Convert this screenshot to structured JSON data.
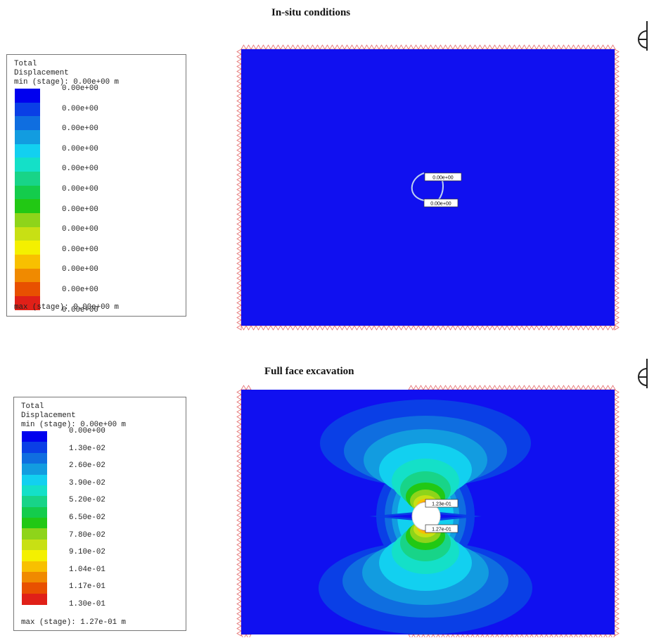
{
  "panels": [
    {
      "title": "In-situ conditions",
      "legend": {
        "header": [
          "Total",
          "Displacement",
          "min (stage): 0.00e+00 m"
        ],
        "values": [
          "0.00e+00",
          "0.00e+00",
          "0.00e+00",
          "0.00e+00",
          "0.00e+00",
          "0.00e+00",
          "0.00e+00",
          "0.00e+00",
          "0.00e+00",
          "0.00e+00",
          "0.00e+00",
          "0.00e+00"
        ],
        "footer": "max (stage): 0.00e+00 m"
      },
      "labels": [
        "0.00e+00",
        "0.00e+00"
      ]
    },
    {
      "title": "Full face excavation",
      "legend": {
        "header": [
          "Total",
          "Displacement",
          "min (stage): 0.00e+00 m"
        ],
        "values": [
          "0.00e+00",
          "1.30e-02",
          "2.60e-02",
          "3.90e-02",
          "5.20e-02",
          "6.50e-02",
          "7.80e-02",
          "9.10e-02",
          "1.04e-01",
          "1.17e-01",
          "1.30e-01"
        ],
        "footer": "max (stage): 1.27e-01 m"
      },
      "labels": [
        "1.23e-01",
        "1.27e-01"
      ]
    }
  ],
  "colors": {
    "scale": [
      "#0000ee",
      "#0a3fe6",
      "#0f6ee0",
      "#129ce0",
      "#12d0f0",
      "#14e0c8",
      "#18d488",
      "#14cc4c",
      "#22c814",
      "#8ed41a",
      "#c8e014",
      "#f4f000",
      "#f8c000",
      "#f08a00",
      "#e85000",
      "#e02018"
    ],
    "domain": "#1010f0",
    "support": "#e46a6a"
  },
  "icons": {
    "corner": "axis-glyph-icon"
  }
}
